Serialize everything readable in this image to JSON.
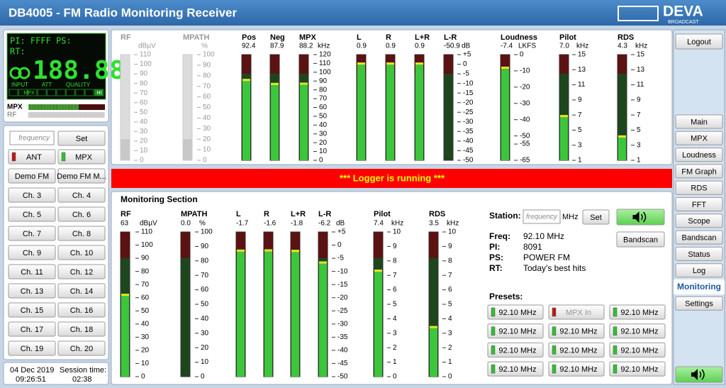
{
  "header": {
    "title": "DB4005 - FM Radio Monitoring Receiver",
    "logo": "DEVA",
    "logo_sub": "BROADCAST"
  },
  "display": {
    "line1": "PI: FFFF PS:",
    "line2": "RT:",
    "frequency": "188.88",
    "groups": [
      "INPUT",
      "ATT",
      "QUALITY"
    ],
    "indicators": [
      "MPX",
      "HI"
    ]
  },
  "level_bars": [
    {
      "label": "MPX",
      "active": true
    },
    {
      "label": "RF",
      "active": false
    }
  ],
  "left_panel": {
    "frequency_placeholder": "frequency",
    "set": "Set",
    "buttons": [
      {
        "label": "ANT",
        "indicator": "#c01818"
      },
      {
        "label": "MPX",
        "indicator": "#30c030"
      },
      {
        "label": "Demo FM"
      },
      {
        "label": "Demo FM M..."
      },
      {
        "label": "Ch. 3"
      },
      {
        "label": "Ch. 4"
      },
      {
        "label": "Ch. 5"
      },
      {
        "label": "Ch. 6"
      },
      {
        "label": "Ch. 7"
      },
      {
        "label": "Ch. 8"
      },
      {
        "label": "Ch. 9"
      },
      {
        "label": "Ch. 10"
      },
      {
        "label": "Ch. 11"
      },
      {
        "label": "Ch. 12"
      },
      {
        "label": "Ch. 13"
      },
      {
        "label": "Ch. 14"
      },
      {
        "label": "Ch. 15"
      },
      {
        "label": "Ch. 16"
      },
      {
        "label": "Ch. 17"
      },
      {
        "label": "Ch. 18"
      },
      {
        "label": "Ch. 19"
      },
      {
        "label": "Ch. 20"
      }
    ]
  },
  "clock": {
    "date": "04 Dec 2019",
    "session_label": "Session time:",
    "time": "09:26:51",
    "session": "02:38"
  },
  "top_meters": [
    {
      "name": "RF",
      "unit": "dBµV",
      "ticks": [
        "110",
        "100",
        "90",
        "80",
        "70",
        "60",
        "50",
        "40",
        "30",
        "20",
        "10",
        "0"
      ]
    },
    {
      "name": "MPATH",
      "unit": "%",
      "ticks": [
        "100",
        "90",
        "80",
        "70",
        "60",
        "50",
        "40",
        "30",
        "20",
        "10",
        "0"
      ]
    },
    {
      "name": "Pos",
      "reading": "92.4"
    },
    {
      "name": "Neg",
      "reading": "87.9"
    },
    {
      "name": "MPX",
      "reading": "88.2",
      "unit": "kHz",
      "ticks": [
        "120",
        "110",
        "100",
        "90",
        "80",
        "70",
        "60",
        "50",
        "40",
        "30",
        "20",
        "10",
        "0"
      ]
    },
    {
      "name": "L",
      "reading": "0.9"
    },
    {
      "name": "R",
      "reading": "0.9"
    },
    {
      "name": "L+R",
      "reading": "0.9"
    },
    {
      "name": "L-R",
      "reading": "-50.9",
      "unit": "dB",
      "ticks": [
        "+5",
        "0",
        "-5",
        "-10",
        "-15",
        "-20",
        "-25",
        "-30",
        "-35",
        "-40",
        "-45",
        "-50"
      ]
    },
    {
      "name": "Loudness",
      "reading": "-7.4",
      "unit": "LKFS",
      "ticks": [
        "0",
        "-10",
        "-20",
        "-30",
        "-40",
        "-50",
        "-55",
        "-65"
      ]
    },
    {
      "name": "Pilot",
      "reading": "7.0",
      "unit": "kHz",
      "ticks": [
        "15",
        "13",
        "11",
        "9",
        "7",
        "5",
        "3",
        "1"
      ]
    },
    {
      "name": "RDS",
      "reading": "4.3",
      "unit": "kHz",
      "ticks": [
        "15",
        "13",
        "11",
        "9",
        "7",
        "5",
        "3",
        "1"
      ]
    }
  ],
  "banner": "***   Logger is running  ***",
  "monitoring": {
    "title": "Monitoring Section",
    "meters": [
      {
        "name": "RF",
        "reading": "63",
        "unit": "dBµV",
        "ticks": [
          "110",
          "100",
          "90",
          "80",
          "70",
          "60",
          "50",
          "40",
          "30",
          "20",
          "10",
          "0"
        ]
      },
      {
        "name": "MPATH",
        "reading": "0.0",
        "unit": "%",
        "ticks": [
          "100",
          "90",
          "80",
          "70",
          "60",
          "50",
          "40",
          "30",
          "20",
          "10",
          "0"
        ]
      },
      {
        "name": "L",
        "reading": "-1.7"
      },
      {
        "name": "R",
        "reading": "-1.6"
      },
      {
        "name": "L+R",
        "reading": "-1.8"
      },
      {
        "name": "L-R",
        "reading": "-6.2",
        "unit": "dB",
        "ticks": [
          "+5",
          "0",
          "-5",
          "-10",
          "-15",
          "-20",
          "-25",
          "-30",
          "-35",
          "-40",
          "-45",
          "-50"
        ]
      },
      {
        "name": "Pilot",
        "reading": "7.4",
        "unit": "kHz",
        "ticks": [
          "10",
          "9",
          "8",
          "7",
          "6",
          "5",
          "4",
          "3",
          "2",
          "1",
          "0"
        ]
      },
      {
        "name": "RDS",
        "reading": "3.5",
        "unit": "kHz",
        "ticks": [
          "10",
          "9",
          "8",
          "7",
          "6",
          "5",
          "4",
          "3",
          "2",
          "1",
          "0"
        ]
      }
    ],
    "station": {
      "label": "Station:",
      "placeholder": "frequency",
      "unit": "MHz",
      "set": "Set",
      "bandscan": "Bandscan"
    },
    "info": [
      {
        "label": "Freq:",
        "value": "92.10 MHz"
      },
      {
        "label": "PI:",
        "value": "8091"
      },
      {
        "label": "PS:",
        "value": "POWER FM"
      },
      {
        "label": "RT:",
        "value": "Today's best hits"
      }
    ],
    "presets_title": "Presets:",
    "presets": [
      {
        "label": "92.10 MHz",
        "indicator": "#30c030"
      },
      {
        "label": "MPX In",
        "indicator": "#c01818",
        "disabled": true
      },
      {
        "label": "92.10 MHz",
        "indicator": "#30c030"
      },
      {
        "label": "92.10 MHz",
        "indicator": "#30c030"
      },
      {
        "label": "92.10 MHz",
        "indicator": "#30c030"
      },
      {
        "label": "92.10 MHz",
        "indicator": "#30c030"
      },
      {
        "label": "92.10 MHz",
        "indicator": "#30c030"
      },
      {
        "label": "92.10 MHz",
        "indicator": "#30c030"
      },
      {
        "label": "92.10 MHz",
        "indicator": "#30c030"
      },
      {
        "label": "92.10 MHz",
        "indicator": "#30c030"
      },
      {
        "label": "92.10 MHz",
        "indicator": "#30c030"
      },
      {
        "label": "92.10 MHz",
        "indicator": "#30c030"
      }
    ]
  },
  "nav": {
    "logout": "Logout",
    "items": [
      {
        "label": "Main"
      },
      {
        "label": "MPX"
      },
      {
        "label": "Loudness"
      },
      {
        "label": "FM Graph"
      },
      {
        "label": "RDS"
      },
      {
        "label": "FFT"
      },
      {
        "label": "Scope"
      },
      {
        "label": "Bandscan"
      },
      {
        "label": "Status"
      },
      {
        "label": "Log"
      },
      {
        "label": "Monitoring",
        "active": true
      },
      {
        "label": "Settings"
      }
    ]
  }
}
